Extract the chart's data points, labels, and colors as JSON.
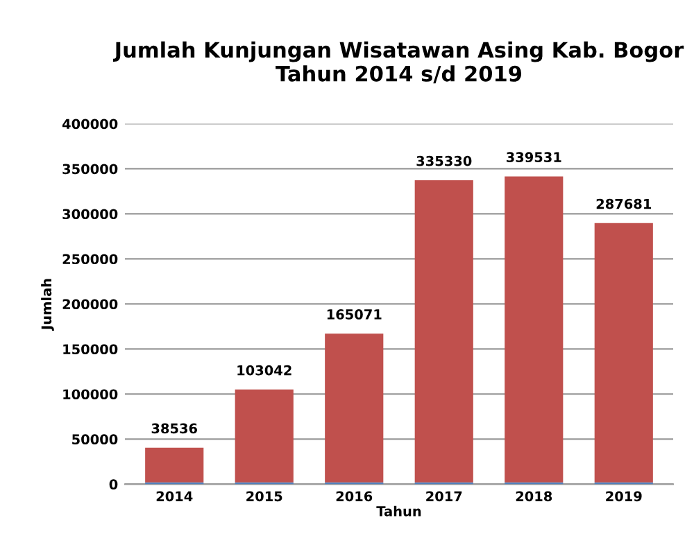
{
  "chart_data": {
    "type": "bar",
    "title": "Jumlah Kunjungan Wisatawan Asing Kab. Bogor\nTahun 2014 s/d 2019",
    "xlabel": "Tahun",
    "ylabel": "Jumlah",
    "categories": [
      "2014",
      "2015",
      "2016",
      "2017",
      "2018",
      "2019"
    ],
    "stacked": true,
    "series": [
      {
        "color": "#4f81bd",
        "values": [
          2000,
          2000,
          2000,
          2000,
          2000,
          2000
        ]
      },
      {
        "color": "#c0504d",
        "values": [
          38536,
          103042,
          165071,
          335330,
          339531,
          287681
        ],
        "value_labels": [
          "38536",
          "103042",
          "165071",
          "335330",
          "339531",
          "287681"
        ]
      }
    ],
    "ylim": [
      0,
      400000
    ],
    "yticks": [
      0,
      50000,
      100000,
      150000,
      200000,
      250000,
      300000,
      350000,
      400000
    ],
    "grid": "y",
    "legend": false
  }
}
